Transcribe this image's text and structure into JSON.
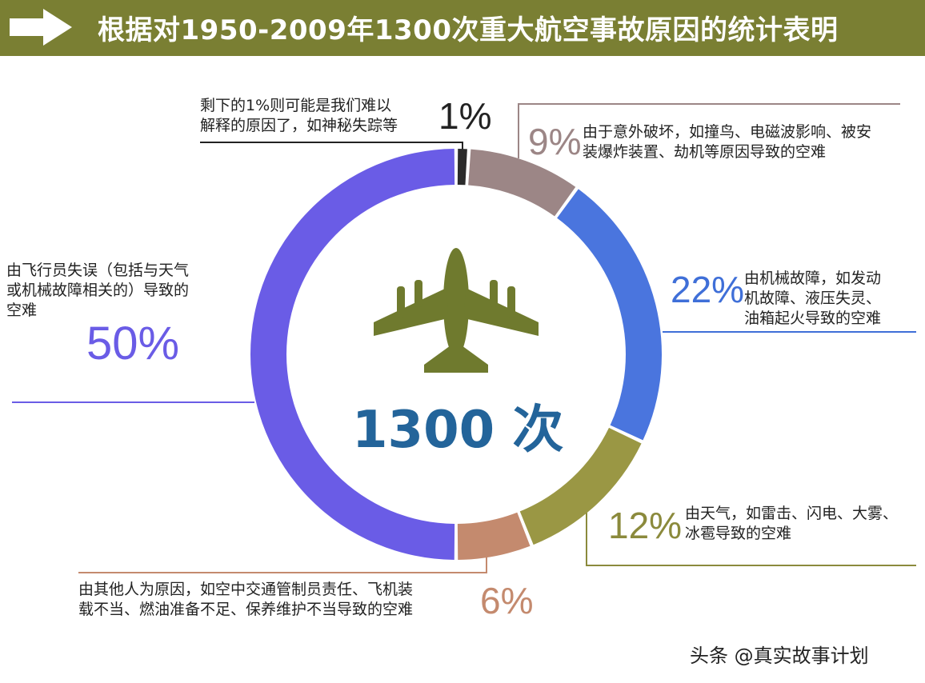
{
  "header": {
    "title": "根据对1950-2009年1300次重大航空事故原因的统计表明",
    "bar_color": "#7a7f33"
  },
  "center": {
    "count": "1300 次",
    "icon": "airplane-icon",
    "icon_color": "#6f7a2e"
  },
  "chart_data": {
    "type": "pie",
    "donut": true,
    "title": "根据对1950-2009年1300次重大航空事故原因的统计表明",
    "slices": [
      {
        "label": "剩下的1%则可能是我们难以解释的原因了，如神秘失踪等",
        "value": 1,
        "pct_text": "1%",
        "color": "#2b2b2b"
      },
      {
        "label": "由于意外破坏，如撞鸟、电磁波影响、被安装爆炸装置、劫机等原因导致的空难",
        "value": 9,
        "pct_text": "9%",
        "color": "#9c8686"
      },
      {
        "label": "由机械故障，如发动机故障、液压失灵、油箱起火导致的空难",
        "value": 22,
        "pct_text": "22%",
        "color": "#4a75de"
      },
      {
        "label": "由天气，如雷击、闪电、大雾、冰雹导致的空难",
        "value": 12,
        "pct_text": "12%",
        "color": "#9a9744"
      },
      {
        "label": "由其他人为原因，如空中交通管制员责任、飞机装载不当、燃油准备不足、保养维护不当导致的空难",
        "value": 6,
        "pct_text": "6%",
        "color": "#c48a6e"
      },
      {
        "label": "由飞行员失误（包括与天气或机械故障相关的）导致的空难",
        "value": 50,
        "pct_text": "50%",
        "color": "#6a5ce6"
      }
    ]
  },
  "annotations": {
    "s1": {
      "pct": "1%",
      "lines": [
        "剩下的1%则可能是我们难以",
        "解释的原因了，如神秘失踪等"
      ]
    },
    "s9": {
      "pct": "9%",
      "lines": [
        "由于意外破坏，如撞鸟、电磁波影响、被安",
        "装爆炸装置、劫机等原因导致的空难"
      ]
    },
    "s22": {
      "pct": "22%",
      "lines": [
        "由机械故障，如发动",
        "机故障、液压失灵、",
        "油箱起火导致的空难"
      ]
    },
    "s12": {
      "pct": "12%",
      "lines": [
        "由天气，如雷击、闪电、大雾、",
        "冰雹导致的空难"
      ]
    },
    "s6": {
      "pct": "6%",
      "lines": [
        "由其他人为原因，如空中交通管制员责任、飞机装",
        "载不当、燃油准备不足、保养维护不当导致的空难"
      ]
    },
    "s50": {
      "pct": "50%",
      "lines": [
        "由飞行员失误（包括与天气",
        "或机械故障相关的）导致的",
        "空难"
      ]
    }
  },
  "colors": {
    "pct_1": "#222222",
    "pct_9": "#9c8686",
    "pct_22": "#3f6fd8",
    "pct_12": "#8b8a3c",
    "pct_6": "#c48a6e",
    "pct_50": "#6a5ce6"
  },
  "watermark": "头条 @真实故事计划"
}
